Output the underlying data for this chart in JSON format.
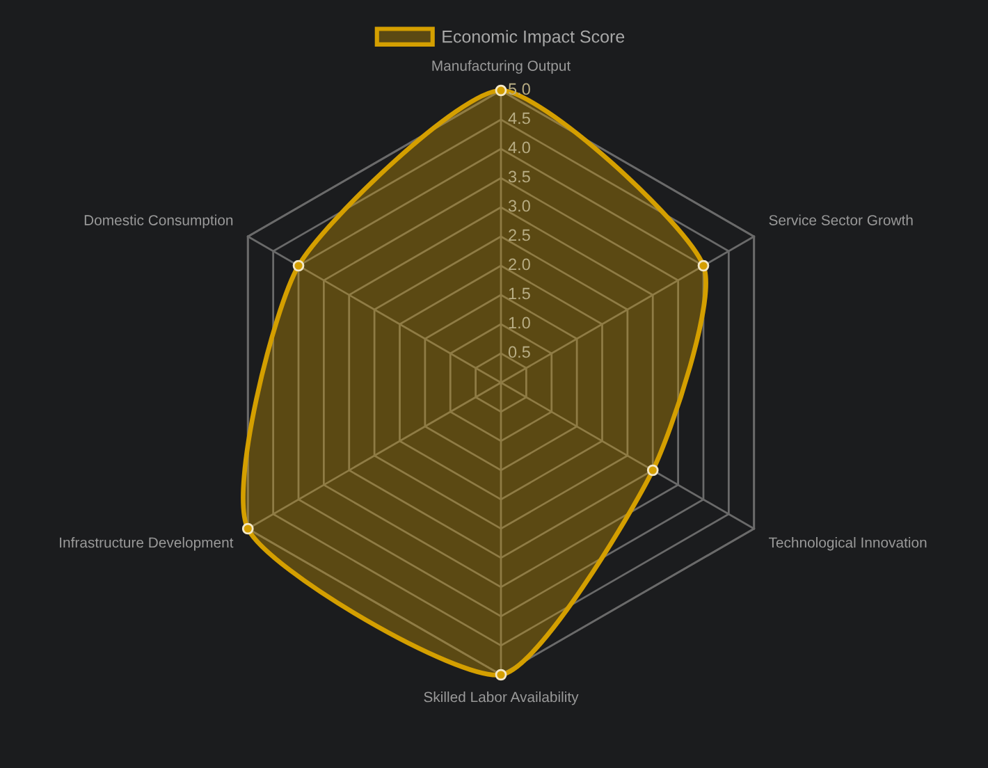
{
  "chart_data": {
    "type": "radar",
    "categories": [
      "Manufacturing Output",
      "Service Sector Growth",
      "Technological Innovation",
      "Skilled Labor Availability",
      "Infrastructure Development",
      "Domestic Consumption"
    ],
    "series": [
      {
        "name": "Economic Impact Score",
        "color": "#d49f00",
        "values": [
          5,
          4,
          3,
          5,
          5,
          4
        ]
      }
    ],
    "ylim": [
      0,
      5
    ],
    "yticks": [
      0.5,
      {
        "value": 1,
        "label": "1.0"
      },
      1.5,
      {
        "value": 2,
        "label": "2.0"
      },
      2.5,
      {
        "value": 3,
        "label": "3.0"
      },
      3.5,
      {
        "value": 4,
        "label": "4.0"
      },
      4.5,
      {
        "value": 5,
        "label": "5.0"
      }
    ],
    "grid": true,
    "legend": "top",
    "marker": "circle",
    "line_style": "solid"
  }
}
